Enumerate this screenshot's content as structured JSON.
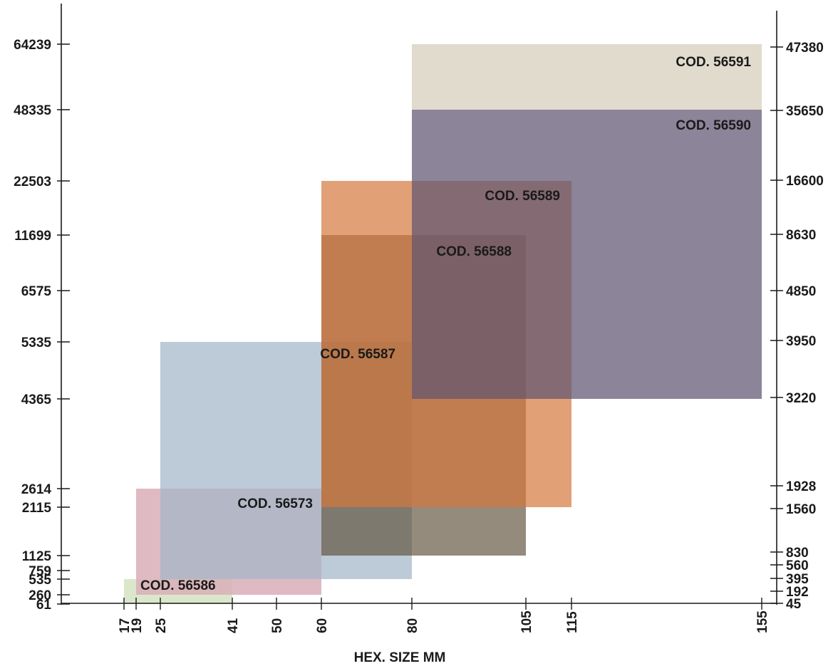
{
  "chart_data": {
    "type": "range-rectangles",
    "title": "",
    "xlabel": "HEX. SIZE MM",
    "x_ticks": [
      17,
      19,
      25,
      41,
      50,
      60,
      80,
      105,
      115,
      155
    ],
    "y_left_ticks": [
      "61",
      "260",
      "535",
      "759",
      "1125",
      "2115",
      "2614",
      "4365",
      "5335",
      "6575",
      "11699",
      "22503",
      "48335",
      "64239"
    ],
    "y_right_ticks": [
      "45",
      "192",
      "395",
      "560",
      "830",
      "1560",
      "1928",
      "3220",
      "3950",
      "4850",
      "8630",
      "16600",
      "35650",
      "47380"
    ],
    "rectangles": [
      {
        "label": "COD. 56586",
        "x_min": 17,
        "x_max": 41,
        "y_min": "61",
        "y_max": "535",
        "color": "#d9e6c8"
      },
      {
        "label": "COD. 56573",
        "x_min": 19,
        "x_max": 60,
        "y_min": "260",
        "y_max": "2614",
        "color": "#d9aeb8"
      },
      {
        "label": "COD. 56587",
        "x_min": 25,
        "x_max": 80,
        "y_min": "535",
        "y_max": "5335",
        "color": "#a3b5c8"
      },
      {
        "label": "COD. 56588",
        "x_min": 60,
        "x_max": 105,
        "y_min": "1125",
        "y_max": "11699",
        "color": "#5a4d37"
      },
      {
        "label": "COD. 56589",
        "x_min": 60,
        "x_max": 115,
        "y_min": "2115",
        "y_max": "22503",
        "color": "#d4783c"
      },
      {
        "label": "COD. 56590",
        "x_min": 80,
        "x_max": 155,
        "y_min": "4365",
        "y_max": "48335",
        "color": "#5f5470"
      },
      {
        "label": "COD. 56591",
        "x_min": 80,
        "x_max": 155,
        "y_min": "48335",
        "y_max": "64239",
        "color": "#dfd9cb"
      }
    ]
  }
}
